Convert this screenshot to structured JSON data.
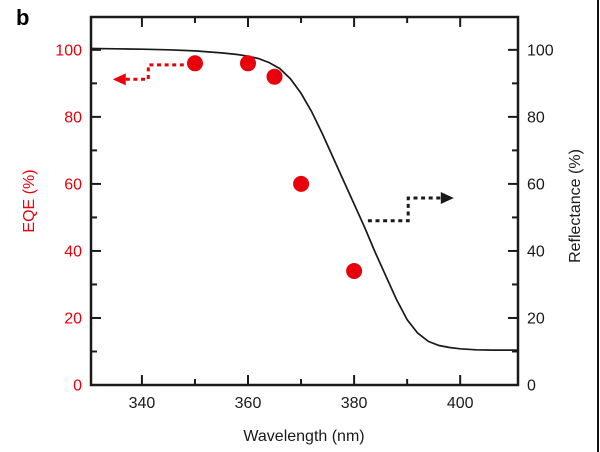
{
  "chart_data": {
    "type": "line",
    "panel_label": "b",
    "xlabel": "Wavelength (nm)",
    "ylabel_left": "EQE (%)",
    "ylabel_right": "Reflectance (%)",
    "x_range": [
      330.4,
      410.9
    ],
    "y_range": [
      0,
      109.8
    ],
    "x_major_ticks": [
      340,
      360,
      380,
      400
    ],
    "x_minor_ticks": [
      350,
      370,
      390
    ],
    "y_major_ticks": [
      0,
      20,
      40,
      60,
      80,
      100
    ],
    "y_minor_ticks": [
      10,
      30,
      50,
      70,
      90
    ],
    "grid": false,
    "legend": "none",
    "colors": {
      "eqe": "#e8000b",
      "reflectance": "#1a1a1a",
      "frame": "#1a1a1a"
    },
    "series": [
      {
        "name": "EQE",
        "axis": "left",
        "plot": "scatter",
        "color": "#e8000b",
        "marker": "filled-circle",
        "marker_radius_px": 8,
        "x": [
          350,
          360,
          365,
          370,
          380
        ],
        "y": [
          96,
          96,
          92,
          60,
          34
        ]
      },
      {
        "name": "Reflectance",
        "axis": "right",
        "plot": "line",
        "color": "#1a1a1a",
        "x": [
          330.4,
          335,
          340,
          345,
          350,
          355,
          358,
          360,
          362,
          364,
          366,
          368,
          370,
          372,
          374,
          376,
          378,
          380,
          382,
          384,
          386,
          388,
          390,
          392,
          394,
          396,
          398,
          400,
          403,
          406,
          410.9
        ],
        "y": [
          100.4,
          100.3,
          100.2,
          100,
          99.7,
          99.1,
          98.6,
          98.1,
          97.4,
          96.2,
          94.4,
          91.4,
          87,
          81.5,
          75,
          68,
          61,
          54,
          47,
          39.5,
          32.5,
          25.5,
          19.5,
          15.5,
          13,
          11.8,
          11.2,
          10.8,
          10.5,
          10.4,
          10.4
        ]
      }
    ],
    "annotations": [
      {
        "name": "eqe-axis-arrow",
        "style": "dashed-elbow",
        "color": "#e8000b",
        "head": "left",
        "points_x": [
          347.9,
          341.2,
          341.2,
          336.9
        ],
        "points_y": [
          95.5,
          95.5,
          91.2,
          91.2
        ],
        "tip_x": 334.5,
        "tip_y": 91.2
      },
      {
        "name": "reflectance-axis-arrow",
        "style": "dashed-elbow",
        "color": "#1a1a1a",
        "head": "right",
        "points_x": [
          382.6,
          390.2,
          390.2,
          396.4
        ],
        "points_y": [
          49,
          49,
          55.8,
          55.8
        ],
        "tip_x": 398.8,
        "tip_y": 55.8
      }
    ]
  }
}
